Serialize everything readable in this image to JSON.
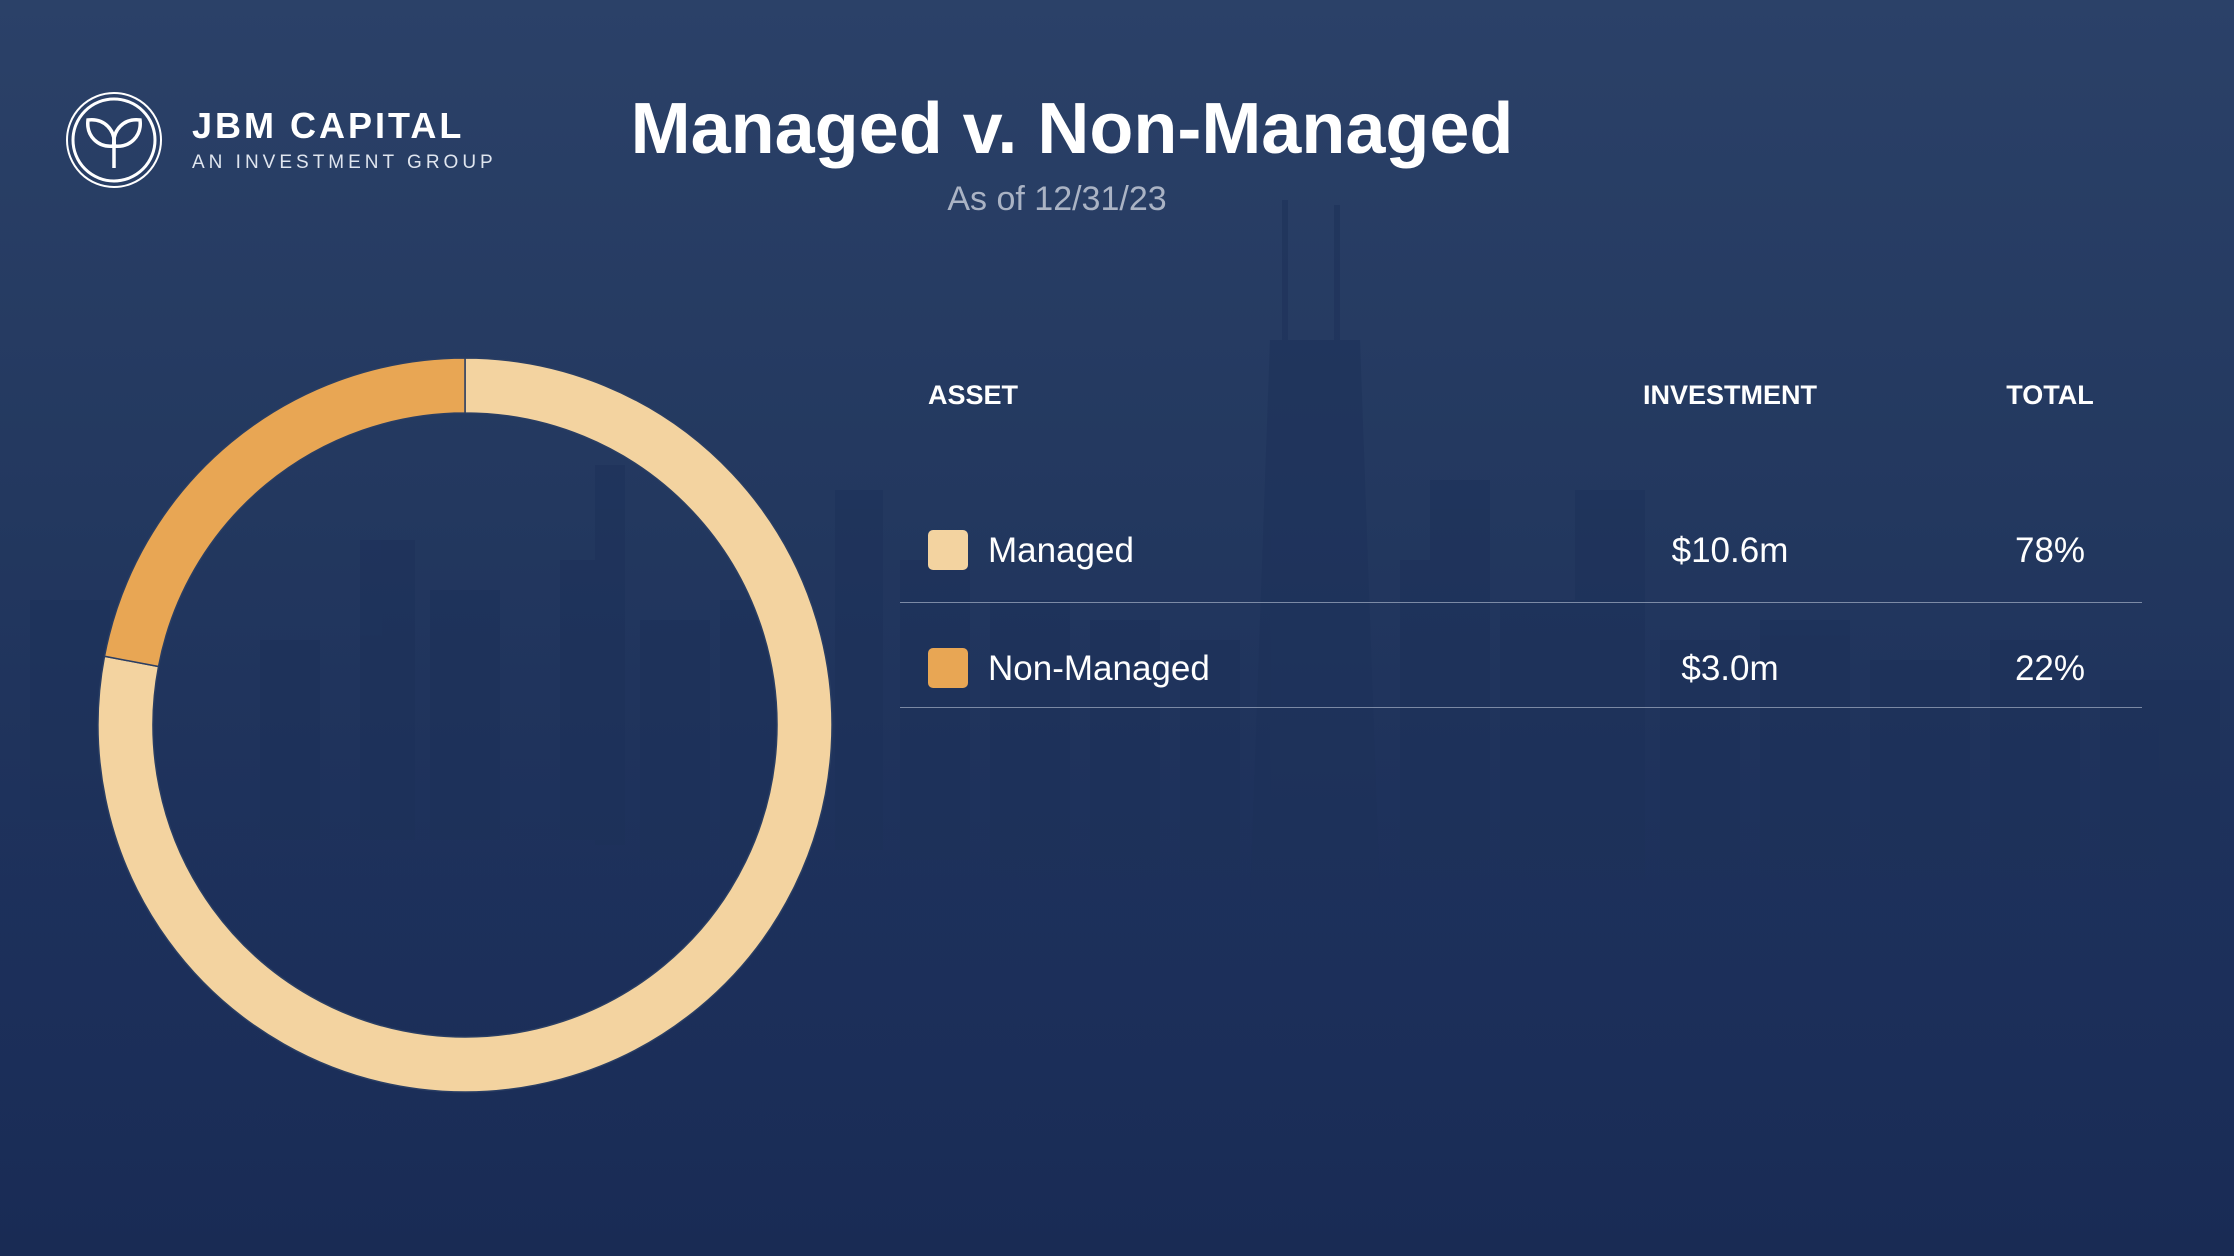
{
  "brand": {
    "name": "JBM CAPITAL",
    "tagline": "AN INVESTMENT GROUP"
  },
  "colors": {
    "background": "#23385f",
    "managed": "#f3d3a0",
    "non_managed": "#e8a654",
    "text": "#ffffff"
  },
  "header": {
    "title": "Managed v. Non-Managed",
    "subtitle": "As of 12/31/23"
  },
  "table": {
    "headers": {
      "asset": "ASSET",
      "investment": "INVESTMENT",
      "total": "TOTAL"
    },
    "rows": [
      {
        "asset": "Managed",
        "investment": "$10.6m",
        "total": "78%",
        "color": "#f3d3a0"
      },
      {
        "asset": "Non-Managed",
        "investment": "$3.0m",
        "total": "22%",
        "color": "#e8a654"
      }
    ]
  },
  "chart_data": {
    "type": "pie",
    "variant": "donut",
    "categories": [
      "Managed",
      "Non-Managed"
    ],
    "values": [
      78,
      22
    ],
    "investment": [
      10.6,
      3.0
    ],
    "unit": "%",
    "colors": [
      "#f3d3a0",
      "#e8a654"
    ],
    "start": "top",
    "direction": "clockwise"
  }
}
